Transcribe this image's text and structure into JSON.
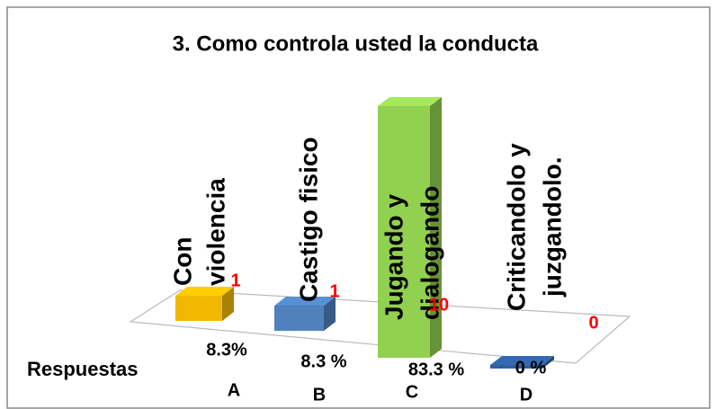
{
  "chart_data": {
    "type": "bar3d",
    "title": "3. Como controla usted la conducta",
    "axis_label": "Respuestas",
    "categories": [
      "A",
      "B",
      "C",
      "D"
    ],
    "values": [
      1,
      1,
      10,
      0
    ],
    "colors": [
      "#f2b800",
      "#4f81bd",
      "#92d050",
      "#2e5f9e"
    ],
    "value_label_color": "#ff0000",
    "percent_labels": [
      "8.3%",
      "8.3 %",
      "83.3 %",
      "0 %"
    ],
    "descriptions": [
      [
        "Con",
        "violencia"
      ],
      [
        "Castigo fisico"
      ],
      [
        "Jugando y",
        "dialogando"
      ],
      [
        "Criticandolo y",
        "juzgandolo."
      ]
    ]
  }
}
